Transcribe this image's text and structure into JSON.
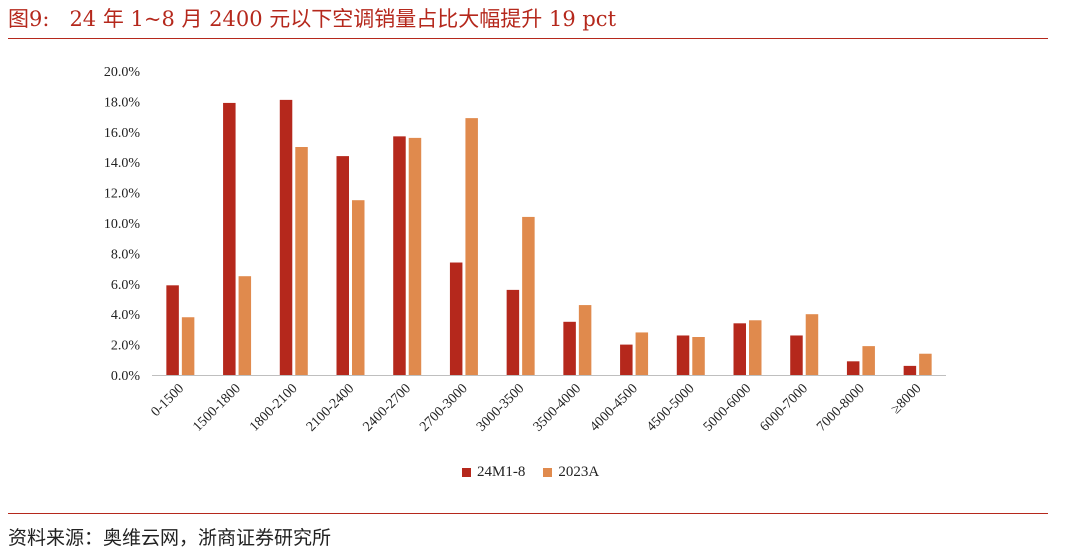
{
  "header": {
    "figure_label": "图9:",
    "title": "24 年 1~8 月 2400 元以下空调销量占比大幅提升 19 pct"
  },
  "source": "资料来源：奥维云网，浙商证券研究所",
  "colors": {
    "accent": "#b5281c",
    "series1": "#b5281c",
    "series2": "#e08a4d"
  },
  "chart_data": {
    "type": "bar",
    "categories": [
      "0-1500",
      "1500-1800",
      "1800-2100",
      "2100-2400",
      "2400-2700",
      "2700-3000",
      "3000-3500",
      "3500-4000",
      "4000-4500",
      "4500-5000",
      "5000-6000",
      "6000-7000",
      "7000-8000",
      "≥8000"
    ],
    "series": [
      {
        "name": "24M1-8",
        "values": [
          5.9,
          17.9,
          18.1,
          14.4,
          15.7,
          7.4,
          5.6,
          3.5,
          2.0,
          2.6,
          3.4,
          2.6,
          0.9,
          0.6
        ]
      },
      {
        "name": "2023A",
        "values": [
          3.8,
          6.5,
          15.0,
          11.5,
          15.6,
          16.9,
          10.4,
          4.6,
          2.8,
          2.5,
          3.6,
          4.0,
          1.9,
          1.4
        ]
      }
    ],
    "yticks": [
      "0.0%",
      "2.0%",
      "4.0%",
      "6.0%",
      "8.0%",
      "10.0%",
      "12.0%",
      "14.0%",
      "16.0%",
      "18.0%",
      "20.0%"
    ],
    "ylim": [
      0,
      20
    ],
    "legend_position": "bottom-center"
  }
}
